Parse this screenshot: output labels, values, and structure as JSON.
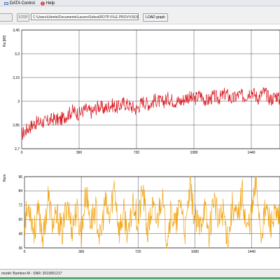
{
  "menu": {
    "items": [
      {
        "label": "DATA Control",
        "icon": "data-control-icon"
      },
      {
        "label": "Help",
        "icon": "help-icon"
      }
    ]
  },
  "toolbar": {
    "start_label": "",
    "stop_label": "STOP",
    "path_value": "C:\\Users\\Utente\\Documents\\Lavoro\\Solesi\\ROTP-FILE PROVVISORI\\Tecnici",
    "load_label": "LOAD graph"
  },
  "status": {
    "text": "model: Bamboo-M - SNR: 2019051217"
  },
  "colors": {
    "top_series": "#d8141c",
    "bottom_series": "#f2a20c"
  },
  "chart_data": [
    {
      "type": "line",
      "ylabel": "Ra [Mf]",
      "xlabel": "",
      "x_ticks": [
        0,
        360,
        720,
        1080,
        1440
      ],
      "y_ticks": [
        2.7,
        2.85,
        3,
        3.15,
        3.3,
        3.45
      ],
      "y_tick_labels": [
        "2,7",
        "2,85",
        "3",
        "3,15",
        "3,3",
        "3,45"
      ],
      "xlim": [
        0,
        1620
      ],
      "ylim": [
        2.7,
        3.45
      ],
      "grid": true,
      "series": [
        {
          "x": [
            0,
            40,
            80,
            120,
            160,
            200,
            240,
            280,
            320,
            360,
            400,
            440,
            480,
            520,
            560,
            600,
            640,
            680,
            720,
            760,
            800,
            840,
            880,
            920,
            960,
            1000,
            1040,
            1080,
            1120,
            1160,
            1200,
            1240,
            1280,
            1320,
            1360,
            1400,
            1440,
            1480,
            1520,
            1560,
            1600,
            1620
          ],
          "y": [
            2.79,
            2.83,
            2.86,
            2.87,
            2.87,
            2.89,
            2.88,
            2.91,
            2.94,
            2.92,
            2.95,
            2.93,
            2.97,
            2.95,
            2.98,
            2.96,
            2.99,
            2.97,
            2.95,
            3.0,
            2.98,
            3.01,
            2.99,
            3.02,
            3.0,
            3.0,
            3.03,
            3.01,
            3.04,
            3.0,
            3.03,
            3.02,
            3.05,
            3.01,
            3.04,
            3.03,
            3.07,
            3.02,
            3.06,
            3.01,
            3.04,
            3.0
          ]
        }
      ]
    },
    {
      "type": "line",
      "ylabel": "Num",
      "xlabel": "",
      "x_ticks": [
        0,
        360,
        720,
        1080,
        1440
      ],
      "y_ticks": [
        36,
        48,
        60,
        72,
        84,
        96
      ],
      "xlim": [
        0,
        1620
      ],
      "ylim": [
        36,
        96
      ],
      "grid": true,
      "series": [
        {
          "x": [
            0,
            30,
            60,
            90,
            120,
            150,
            180,
            210,
            240,
            270,
            300,
            330,
            360,
            390,
            420,
            450,
            480,
            510,
            540,
            570,
            600,
            630,
            660,
            690,
            720,
            750,
            780,
            810,
            840,
            870,
            900,
            930,
            960,
            990,
            1020,
            1050,
            1080,
            1110,
            1140,
            1170,
            1200,
            1230,
            1260,
            1290,
            1320,
            1350,
            1380,
            1410,
            1440,
            1470,
            1500,
            1530,
            1560,
            1590,
            1620
          ],
          "y": [
            58,
            72,
            50,
            66,
            44,
            80,
            55,
            62,
            48,
            76,
            52,
            68,
            46,
            84,
            57,
            70,
            42,
            74,
            60,
            90,
            50,
            65,
            45,
            78,
            56,
            86,
            48,
            70,
            58,
            82,
            44,
            66,
            54,
            76,
            48,
            88,
            60,
            52,
            72,
            46,
            80,
            56,
            68,
            42,
            74,
            58,
            84,
            50,
            66,
            92,
            48,
            70,
            56,
            62,
            58
          ]
        }
      ]
    }
  ]
}
